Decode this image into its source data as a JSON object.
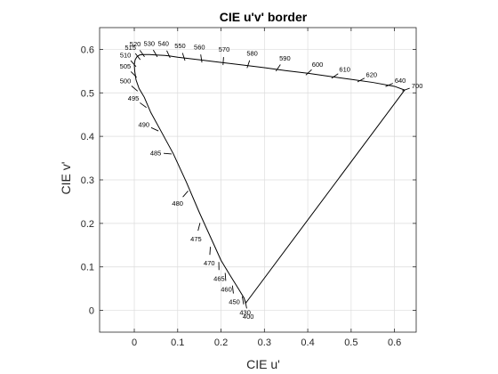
{
  "chart_data": {
    "type": "line",
    "title": "CIE u'v' border",
    "xlabel": "CIE u'",
    "ylabel": "CIE v'",
    "xlim": [
      -0.08,
      0.65
    ],
    "ylim": [
      -0.05,
      0.65
    ],
    "xticks": [
      0,
      0.1,
      0.2,
      0.3,
      0.4,
      0.5,
      0.6
    ],
    "xtick_labels": [
      "0",
      "0.1",
      "0.2",
      "0.3",
      "0.4",
      "0.5",
      "0.6"
    ],
    "yticks": [
      0,
      0.1,
      0.2,
      0.3,
      0.4,
      0.5,
      0.6
    ],
    "ytick_labels": [
      "0",
      "0.1",
      "0.2",
      "0.3",
      "0.4",
      "0.5",
      "0.6"
    ],
    "grid": true,
    "series": [
      {
        "x": [
          0.2568,
          0.2533,
          0.24,
          0.22,
          0.2,
          0.175,
          0.15,
          0.12,
          0.09,
          0.06,
          0.038,
          0.023,
          0.011,
          0.004,
          0.001,
          0.0,
          0.002,
          0.006,
          0.012,
          0.02,
          0.035,
          0.05,
          0.07,
          0.08,
          0.1,
          0.15,
          0.2,
          0.25,
          0.3,
          0.35,
          0.4,
          0.45,
          0.5,
          0.55,
          0.6,
          0.6234,
          0.2568
        ],
        "y": [
          0.0165,
          0.028,
          0.05,
          0.082,
          0.115,
          0.17,
          0.225,
          0.295,
          0.36,
          0.415,
          0.455,
          0.49,
          0.51,
          0.53,
          0.55,
          0.565,
          0.576,
          0.583,
          0.587,
          0.588,
          0.588,
          0.587,
          0.586,
          0.585,
          0.582,
          0.576,
          0.57,
          0.564,
          0.558,
          0.551,
          0.545,
          0.538,
          0.531,
          0.524,
          0.515,
          0.5065,
          0.0165
        ]
      }
    ],
    "wavelength_marks": [
      {
        "label": "400",
        "u": 0.2568,
        "v": 0.0165
      },
      {
        "label": "430",
        "u": 0.25,
        "v": 0.026
      },
      {
        "label": "450",
        "u": 0.227,
        "v": 0.051
      },
      {
        "label": "460",
        "u": 0.21,
        "v": 0.08
      },
      {
        "label": "465",
        "u": 0.195,
        "v": 0.105
      },
      {
        "label": "470",
        "u": 0.175,
        "v": 0.14
      },
      {
        "label": "475",
        "u": 0.15,
        "v": 0.195
      },
      {
        "label": "480",
        "u": 0.12,
        "v": 0.27
      },
      {
        "label": "485",
        "u": 0.08,
        "v": 0.36
      },
      {
        "label": "490",
        "u": 0.05,
        "v": 0.415
      },
      {
        "label": "495",
        "u": 0.023,
        "v": 0.47
      },
      {
        "label": "500",
        "u": 0.003,
        "v": 0.508
      },
      {
        "label": "505",
        "u": 0.001,
        "v": 0.54
      },
      {
        "label": "510",
        "u": 0.0,
        "v": 0.565
      },
      {
        "label": "515",
        "u": 0.01,
        "v": 0.581
      },
      {
        "label": "520",
        "u": 0.02,
        "v": 0.588
      },
      {
        "label": "530",
        "u": 0.05,
        "v": 0.588
      },
      {
        "label": "540",
        "u": 0.08,
        "v": 0.586
      },
      {
        "label": "550",
        "u": 0.115,
        "v": 0.58
      },
      {
        "label": "560",
        "u": 0.155,
        "v": 0.576
      },
      {
        "label": "570",
        "u": 0.205,
        "v": 0.57
      },
      {
        "label": "580",
        "u": 0.262,
        "v": 0.563
      },
      {
        "label": "590",
        "u": 0.33,
        "v": 0.555
      },
      {
        "label": "600",
        "u": 0.4,
        "v": 0.545
      },
      {
        "label": "610",
        "u": 0.46,
        "v": 0.537
      },
      {
        "label": "620",
        "u": 0.52,
        "v": 0.528
      },
      {
        "label": "640",
        "u": 0.585,
        "v": 0.517
      },
      {
        "label": "700",
        "u": 0.6234,
        "v": 0.5065
      }
    ]
  }
}
